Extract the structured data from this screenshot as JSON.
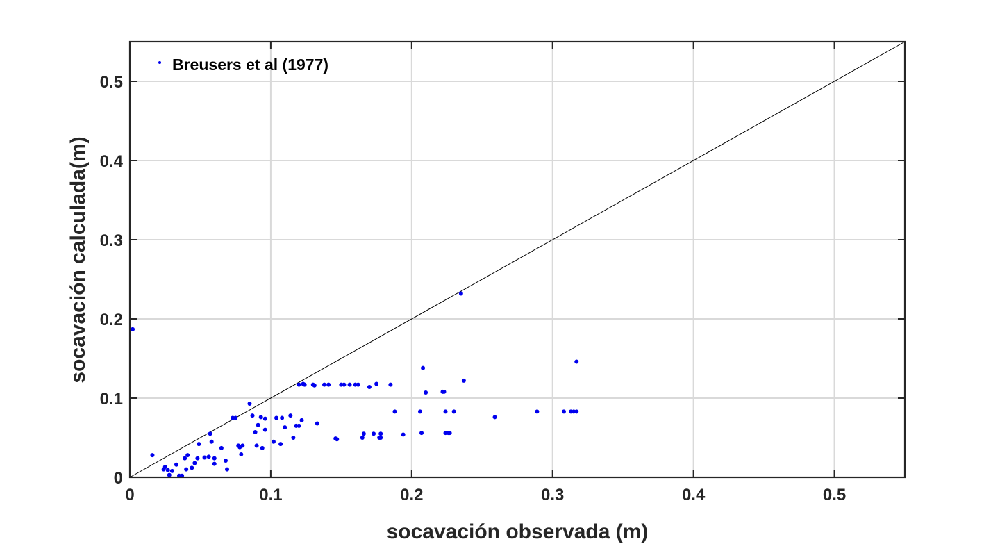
{
  "chart_data": {
    "type": "scatter",
    "xlabel": "socavación observada (m)",
    "ylabel": "socavación calculada(m)",
    "xlim": [
      0,
      0.55
    ],
    "ylim": [
      0,
      0.55
    ],
    "xticks": [
      0,
      0.1,
      0.2,
      0.3,
      0.4,
      0.5
    ],
    "yticks": [
      0,
      0.1,
      0.2,
      0.3,
      0.4,
      0.5
    ],
    "xtick_labels": [
      "0",
      "0.1",
      "0.2",
      "0.3",
      "0.4",
      "0.5"
    ],
    "ytick_labels": [
      "0",
      "0.1",
      "0.2",
      "0.3",
      "0.4",
      "0.5"
    ],
    "grid": true,
    "legend_position": "top-left",
    "reference_line": {
      "from": [
        0,
        0
      ],
      "to": [
        0.55,
        0.55
      ],
      "color": "#000000"
    },
    "series": [
      {
        "name": "Breusers et al (1977)",
        "color": "#0000ee",
        "points": [
          [
            0.002,
            0.187
          ],
          [
            0.016,
            0.028
          ],
          [
            0.024,
            0.01
          ],
          [
            0.025,
            0.013
          ],
          [
            0.027,
            0.009
          ],
          [
            0.028,
            0.003
          ],
          [
            0.03,
            0.008
          ],
          [
            0.033,
            0.016
          ],
          [
            0.035,
            0.002
          ],
          [
            0.037,
            0.002
          ],
          [
            0.039,
            0.024
          ],
          [
            0.04,
            0.01
          ],
          [
            0.041,
            0.028
          ],
          [
            0.044,
            0.012
          ],
          [
            0.046,
            0.018
          ],
          [
            0.048,
            0.024
          ],
          [
            0.049,
            0.042
          ],
          [
            0.053,
            0.025
          ],
          [
            0.056,
            0.026
          ],
          [
            0.057,
            0.055
          ],
          [
            0.058,
            0.045
          ],
          [
            0.06,
            0.017
          ],
          [
            0.06,
            0.024
          ],
          [
            0.065,
            0.037
          ],
          [
            0.068,
            0.021
          ],
          [
            0.069,
            0.01
          ],
          [
            0.073,
            0.075
          ],
          [
            0.075,
            0.075
          ],
          [
            0.077,
            0.04
          ],
          [
            0.078,
            0.038
          ],
          [
            0.079,
            0.029
          ],
          [
            0.08,
            0.04
          ],
          [
            0.085,
            0.093
          ],
          [
            0.087,
            0.078
          ],
          [
            0.089,
            0.057
          ],
          [
            0.09,
            0.04
          ],
          [
            0.091,
            0.066
          ],
          [
            0.093,
            0.076
          ],
          [
            0.094,
            0.037
          ],
          [
            0.096,
            0.074
          ],
          [
            0.096,
            0.06
          ],
          [
            0.102,
            0.045
          ],
          [
            0.104,
            0.075
          ],
          [
            0.107,
            0.042
          ],
          [
            0.108,
            0.075
          ],
          [
            0.11,
            0.063
          ],
          [
            0.114,
            0.078
          ],
          [
            0.116,
            0.05
          ],
          [
            0.118,
            0.065
          ],
          [
            0.12,
            0.065
          ],
          [
            0.12,
            0.117
          ],
          [
            0.122,
            0.072
          ],
          [
            0.123,
            0.118
          ],
          [
            0.124,
            0.117
          ],
          [
            0.13,
            0.117
          ],
          [
            0.131,
            0.116
          ],
          [
            0.133,
            0.068
          ],
          [
            0.138,
            0.117
          ],
          [
            0.141,
            0.117
          ],
          [
            0.146,
            0.049
          ],
          [
            0.147,
            0.048
          ],
          [
            0.15,
            0.117
          ],
          [
            0.152,
            0.117
          ],
          [
            0.156,
            0.117
          ],
          [
            0.16,
            0.117
          ],
          [
            0.162,
            0.117
          ],
          [
            0.165,
            0.05
          ],
          [
            0.166,
            0.055
          ],
          [
            0.17,
            0.114
          ],
          [
            0.173,
            0.055
          ],
          [
            0.175,
            0.118
          ],
          [
            0.177,
            0.05
          ],
          [
            0.178,
            0.055
          ],
          [
            0.178,
            0.05
          ],
          [
            0.185,
            0.117
          ],
          [
            0.188,
            0.083
          ],
          [
            0.194,
            0.054
          ],
          [
            0.206,
            0.083
          ],
          [
            0.207,
            0.056
          ],
          [
            0.208,
            0.138
          ],
          [
            0.21,
            0.107
          ],
          [
            0.222,
            0.108
          ],
          [
            0.223,
            0.108
          ],
          [
            0.224,
            0.083
          ],
          [
            0.224,
            0.056
          ],
          [
            0.226,
            0.056
          ],
          [
            0.227,
            0.056
          ],
          [
            0.23,
            0.083
          ],
          [
            0.235,
            0.232
          ],
          [
            0.237,
            0.122
          ],
          [
            0.259,
            0.076
          ],
          [
            0.289,
            0.083
          ],
          [
            0.308,
            0.083
          ],
          [
            0.313,
            0.083
          ],
          [
            0.315,
            0.083
          ],
          [
            0.317,
            0.083
          ],
          [
            0.317,
            0.146
          ]
        ]
      }
    ]
  }
}
